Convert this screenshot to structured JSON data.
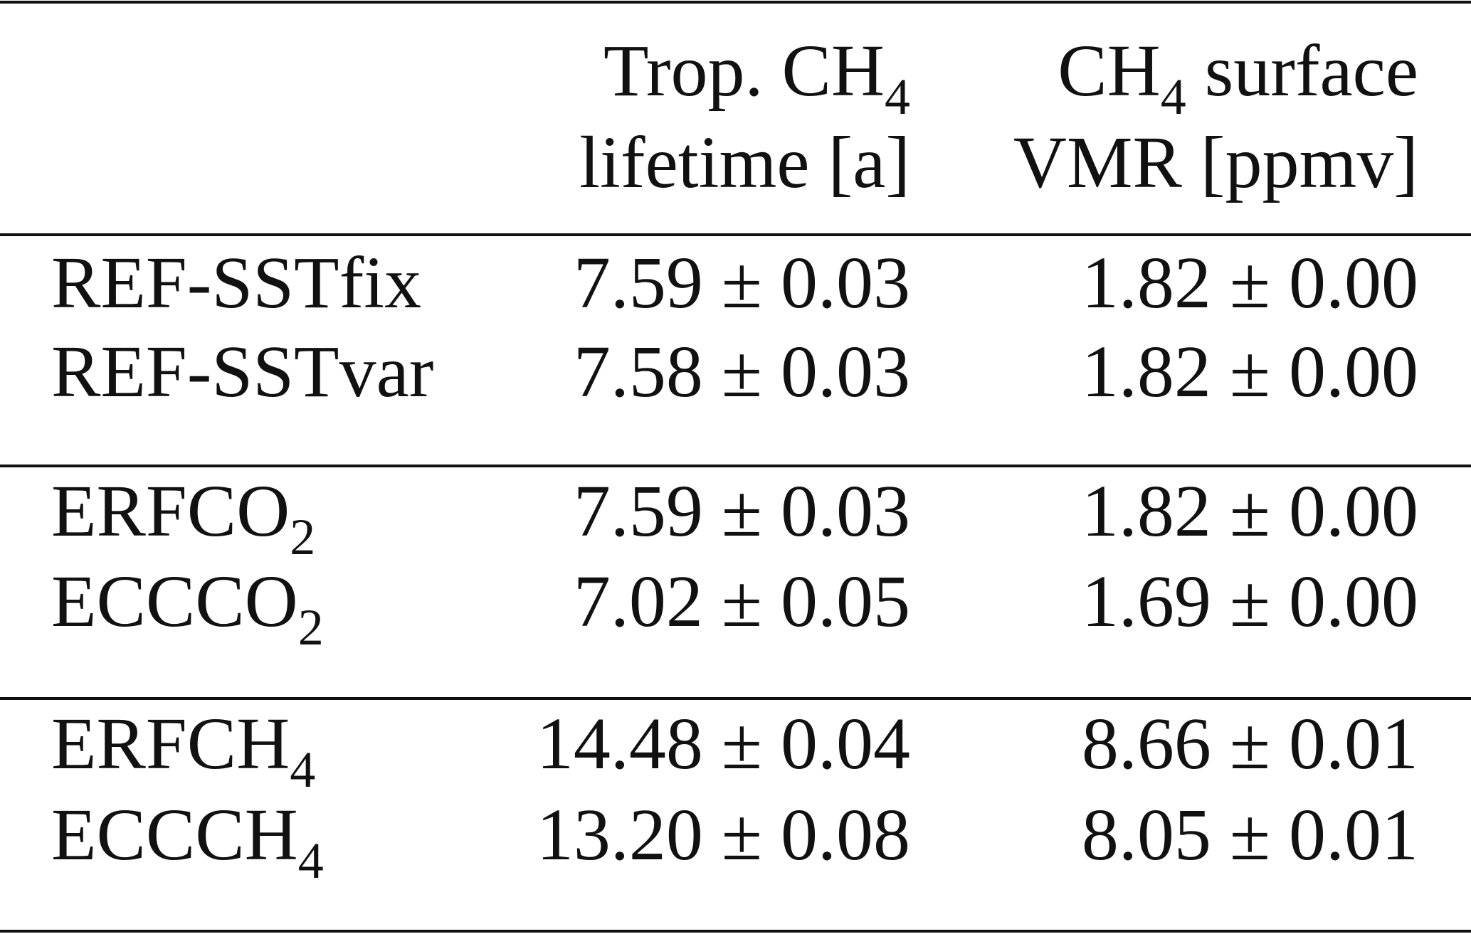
{
  "table": {
    "header": [
      {
        "line1": {
          "text": "Trop. CH",
          "sub": "4"
        },
        "line2": "lifetime [a]"
      },
      {
        "line1": {
          "text": "CH",
          "sub": "4",
          "after": " surface"
        },
        "line2": "VMR [ppmv]"
      }
    ],
    "groups": [
      [
        {
          "label": {
            "text": "REF-SSTfix"
          },
          "cells": [
            "7.59 ± 0.03",
            "1.82 ± 0.00"
          ]
        },
        {
          "label": {
            "text": "REF-SSTvar"
          },
          "cells": [
            "7.58 ± 0.03",
            "1.82 ± 0.00"
          ]
        }
      ],
      [
        {
          "label": {
            "text": "ERFCO",
            "sub": "2"
          },
          "cells": [
            "7.59 ± 0.03",
            "1.82 ± 0.00"
          ]
        },
        {
          "label": {
            "text": "ECCCO",
            "sub": "2"
          },
          "cells": [
            "7.02 ± 0.05",
            "1.69 ± 0.00"
          ]
        }
      ],
      [
        {
          "label": {
            "text": "ERFCH",
            "sub": "4"
          },
          "cells": [
            "14.48 ± 0.04",
            "8.66 ± 0.01"
          ]
        },
        {
          "label": {
            "text": "ECCCH",
            "sub": "4"
          },
          "cells": [
            "13.20 ± 0.08",
            "8.05 ± 0.01"
          ]
        }
      ]
    ]
  }
}
